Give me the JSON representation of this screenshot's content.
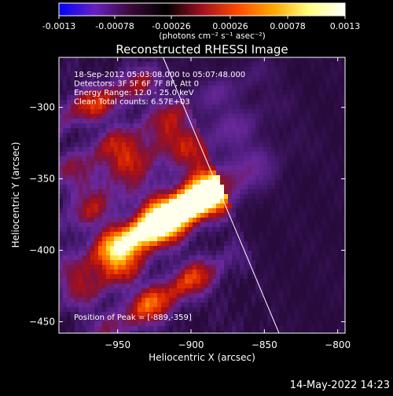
{
  "colorbar": {
    "ticks": [
      "-0.0013",
      "-0.00078",
      "-0.00026",
      "0.00026",
      "0.00078",
      "0.0013"
    ],
    "units": "(photons cm⁻² s⁻¹ asec⁻²)",
    "colors": [
      "#0000ff",
      "#6a20c0",
      "#3a0a3a",
      "#000000",
      "#a01020",
      "#ff4a00",
      "#ffa800",
      "#ffff80",
      "#ffffff"
    ]
  },
  "chart_data": {
    "type": "heatmap",
    "title": "Reconstructed RHESSI Image",
    "xlabel": "Heliocentric X (arcsec)",
    "ylabel": "Heliocentric Y (arcsec)",
    "xlim": [
      -990,
      -795
    ],
    "ylim": [
      -458,
      -265
    ],
    "xticks": [
      -950,
      -900,
      -850,
      -800
    ],
    "yticks": [
      -300,
      -350,
      -400,
      -450
    ],
    "grid": false,
    "info_lines": [
      "18-Sep-2012 05:03:08.000 to 05:07:48.000",
      "Detectors: 3F 5F 6F 7F 8F, Att 0",
      "Energy Range: 12.0 - 25.0 keV",
      "Clean    Total counts: 6.57E+03"
    ],
    "peak_label": "Position of Peak = [-889,-359]",
    "peak": [
      -889,
      -359
    ],
    "limb_line": [
      [
        -919,
        -265
      ],
      [
        -840,
        -458
      ]
    ]
  },
  "footer": {
    "timestamp": "14-May-2022 14:23"
  }
}
